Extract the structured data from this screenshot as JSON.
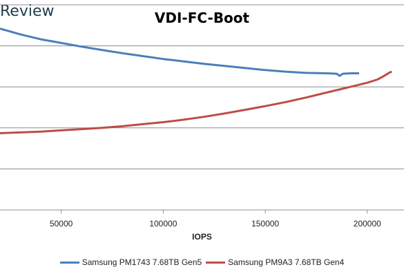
{
  "watermark": "Review",
  "chart_data": {
    "type": "line",
    "title": "VDI-FC-Boot",
    "xlabel": "IOPS",
    "ylabel": "",
    "xlim": [
      20000,
      218000
    ],
    "ylim": [
      0,
      5
    ],
    "x_ticks": [
      50000,
      100000,
      150000,
      200000
    ],
    "x_tick_labels": [
      "50000",
      "100000",
      "150000",
      "200000"
    ],
    "grid": true,
    "legend_position": "bottom",
    "series": [
      {
        "name": "Samsung PM1743 7.68TB Gen5",
        "color": "#4a7ebb",
        "points": [
          [
            20000,
            4.42
          ],
          [
            30000,
            4.28
          ],
          [
            40000,
            4.16
          ],
          [
            50000,
            4.07
          ],
          [
            60000,
            3.98
          ],
          [
            70000,
            3.9
          ],
          [
            80000,
            3.82
          ],
          [
            90000,
            3.75
          ],
          [
            100000,
            3.68
          ],
          [
            110000,
            3.62
          ],
          [
            120000,
            3.56
          ],
          [
            130000,
            3.51
          ],
          [
            140000,
            3.46
          ],
          [
            150000,
            3.41
          ],
          [
            160000,
            3.37
          ],
          [
            170000,
            3.34
          ],
          [
            180000,
            3.33
          ],
          [
            185000,
            3.32
          ],
          [
            186500,
            3.27
          ],
          [
            188000,
            3.32
          ],
          [
            192000,
            3.33
          ],
          [
            196000,
            3.33
          ]
        ]
      },
      {
        "name": "Samsung PM9A3 7.68TB Gen4",
        "color": "#be4b48",
        "points": [
          [
            20000,
            1.87
          ],
          [
            30000,
            1.89
          ],
          [
            40000,
            1.91
          ],
          [
            50000,
            1.94
          ],
          [
            60000,
            1.97
          ],
          [
            70000,
            2.0
          ],
          [
            80000,
            2.04
          ],
          [
            90000,
            2.09
          ],
          [
            100000,
            2.14
          ],
          [
            110000,
            2.2
          ],
          [
            120000,
            2.27
          ],
          [
            130000,
            2.35
          ],
          [
            140000,
            2.44
          ],
          [
            150000,
            2.53
          ],
          [
            160000,
            2.63
          ],
          [
            170000,
            2.74
          ],
          [
            180000,
            2.86
          ],
          [
            190000,
            2.98
          ],
          [
            200000,
            3.1
          ],
          [
            205000,
            3.18
          ],
          [
            208000,
            3.26
          ],
          [
            211000,
            3.35
          ],
          [
            212000,
            3.37
          ]
        ]
      }
    ]
  }
}
